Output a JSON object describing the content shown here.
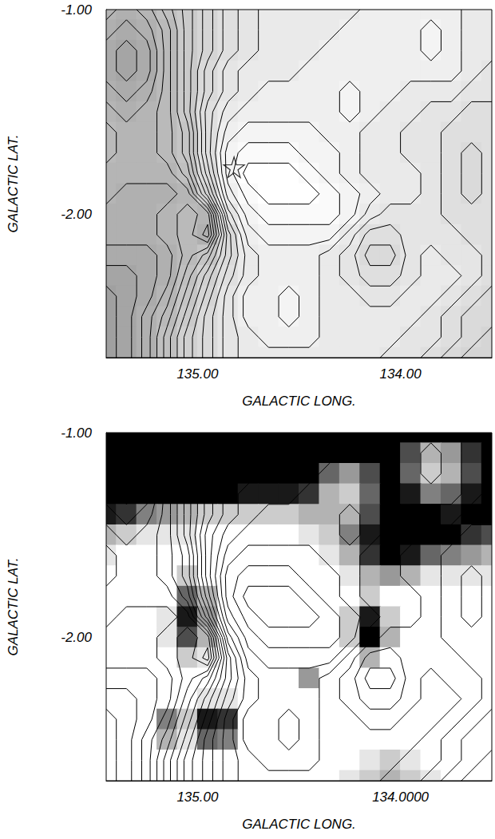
{
  "chart_data": [
    {
      "type": "contour",
      "xlabel": "GALACTIC LONG.",
      "ylabel": "GALACTIC LAT.",
      "xlim": [
        135.45,
        133.55
      ],
      "ylim": [
        -2.7,
        -1.0
      ],
      "xticks": [
        {
          "value": 135,
          "label": "135.00"
        },
        {
          "value": 134,
          "label": "134.00"
        }
      ],
      "yticks": [
        {
          "value": -1,
          "label": "-1.00"
        },
        {
          "value": -2,
          "label": "-2.00"
        }
      ],
      "x": [
        135.45,
        135.35,
        135.25,
        135.15,
        135.05,
        134.95,
        134.85,
        134.75,
        134.65,
        134.55,
        134.45,
        134.35,
        134.25,
        134.15,
        134.05,
        133.95,
        133.85,
        133.75,
        133.65,
        133.55
      ],
      "y": [
        -1.0,
        -1.1,
        -1.2,
        -1.3,
        -1.4,
        -1.5,
        -1.6,
        -1.7,
        -1.8,
        -1.9,
        -2.0,
        -2.1,
        -2.2,
        -2.3,
        -2.4,
        -2.5,
        -2.6,
        -2.7
      ],
      "field": [
        [
          15,
          16,
          15,
          13,
          11,
          9,
          7,
          6,
          5,
          5,
          5,
          5,
          5,
          4,
          4,
          4,
          4,
          4,
          5,
          5
        ],
        [
          16,
          17,
          16,
          14,
          11,
          9,
          7,
          6,
          5,
          5,
          5,
          5,
          4,
          4,
          4,
          4,
          3,
          4,
          5,
          5
        ],
        [
          17,
          18,
          17,
          14,
          11,
          9,
          7,
          6,
          5,
          5,
          5,
          4,
          4,
          4,
          4,
          4,
          3,
          4,
          5,
          5
        ],
        [
          17,
          18,
          17,
          14,
          11,
          8,
          6,
          5,
          5,
          5,
          4,
          4,
          4,
          4,
          4,
          4,
          4,
          4,
          5,
          6
        ],
        [
          16,
          17,
          16,
          14,
          11,
          8,
          6,
          5,
          4,
          4,
          4,
          4,
          3,
          4,
          4,
          5,
          5,
          5,
          6,
          6
        ],
        [
          15,
          16,
          15,
          14,
          11,
          7,
          5,
          4,
          4,
          4,
          4,
          4,
          3,
          4,
          5,
          5,
          6,
          6,
          7,
          7
        ],
        [
          14,
          15,
          15,
          14,
          12,
          7,
          4,
          3,
          3,
          3,
          3,
          4,
          4,
          5,
          5,
          6,
          6,
          7,
          7,
          7
        ],
        [
          14,
          15,
          15,
          14,
          12,
          7,
          3,
          2,
          2,
          2,
          3,
          3,
          4,
          5,
          5,
          6,
          6,
          7,
          8,
          7
        ],
        [
          15,
          15,
          15,
          15,
          13,
          8,
          3,
          1,
          1,
          1,
          2,
          3,
          4,
          5,
          5,
          5,
          6,
          7,
          8,
          7
        ],
        [
          15,
          16,
          16,
          16,
          15,
          10,
          4,
          2,
          1,
          1,
          1,
          2,
          3,
          4,
          5,
          5,
          6,
          7,
          8,
          7
        ],
        [
          16,
          16,
          16,
          15,
          14,
          15,
          6,
          3,
          2,
          2,
          2,
          2,
          3,
          5,
          6,
          6,
          6,
          7,
          7,
          7
        ],
        [
          16,
          16,
          16,
          15,
          14,
          16,
          8,
          4,
          3,
          3,
          3,
          3,
          5,
          7,
          7,
          6,
          6,
          6,
          7,
          7
        ],
        [
          17,
          17,
          17,
          16,
          14,
          12,
          8,
          5,
          4,
          4,
          4,
          5,
          6,
          8,
          8,
          6,
          5,
          6,
          6,
          7
        ],
        [
          18,
          18,
          17,
          16,
          13,
          10,
          7,
          5,
          4,
          4,
          4,
          5,
          6,
          7,
          7,
          6,
          5,
          5,
          6,
          7
        ],
        [
          19,
          18,
          17,
          15,
          12,
          9,
          6,
          4,
          4,
          3,
          4,
          5,
          5,
          6,
          6,
          5,
          5,
          6,
          7,
          8
        ],
        [
          19,
          18,
          16,
          14,
          11,
          8,
          6,
          4,
          4,
          3,
          4,
          5,
          5,
          5,
          5,
          5,
          6,
          7,
          8,
          8
        ],
        [
          19,
          18,
          16,
          13,
          10,
          8,
          6,
          5,
          4,
          4,
          4,
          5,
          5,
          5,
          5,
          6,
          6,
          7,
          8,
          9
        ],
        [
          19,
          18,
          16,
          13,
          10,
          8,
          6,
          5,
          5,
          5,
          5,
          5,
          5,
          5,
          6,
          6,
          7,
          8,
          9,
          9
        ]
      ],
      "levels": [
        1.5,
        2.5,
        3.5,
        4.5,
        5.5,
        6.5,
        7.5,
        8.5,
        9.5,
        10.5,
        11.5,
        12.5,
        13.5,
        14.5,
        15.5,
        16.5,
        17.5,
        18.5
      ],
      "points": [
        [
          134.82,
          -1.77
        ]
      ],
      "marker": "star"
    },
    {
      "type": "contour",
      "xlabel": "GALACTIC LONG.",
      "ylabel": "GALACTIC LAT.",
      "xlim": [
        135.45,
        133.55
      ],
      "ylim": [
        -2.7,
        -1.0
      ],
      "xticks": [
        {
          "value": 135,
          "label": "135.00"
        },
        {
          "value": 134,
          "label": "134.0000"
        }
      ],
      "yticks": [
        {
          "value": -1,
          "label": "-1.00"
        },
        {
          "value": -2,
          "label": "-2.00"
        }
      ],
      "x": [
        135.45,
        135.35,
        135.25,
        135.15,
        135.05,
        134.95,
        134.85,
        134.75,
        134.65,
        134.55,
        134.45,
        134.35,
        134.25,
        134.15,
        134.05,
        133.95,
        133.85,
        133.75,
        133.65,
        133.55
      ],
      "y": [
        -1.0,
        -1.1,
        -1.2,
        -1.3,
        -1.4,
        -1.5,
        -1.6,
        -1.7,
        -1.8,
        -1.9,
        -2.0,
        -2.1,
        -2.2,
        -2.3,
        -2.4,
        -2.5,
        -2.6,
        -2.7
      ],
      "field": [
        [
          15,
          16,
          15,
          13,
          11,
          9,
          7,
          6,
          5,
          5,
          5,
          5,
          5,
          4,
          4,
          4,
          4,
          4,
          5,
          5
        ],
        [
          16,
          17,
          16,
          14,
          11,
          9,
          7,
          6,
          5,
          5,
          5,
          5,
          4,
          4,
          4,
          4,
          3,
          4,
          5,
          5
        ],
        [
          17,
          18,
          17,
          14,
          11,
          9,
          7,
          6,
          5,
          5,
          5,
          4,
          4,
          4,
          4,
          4,
          3,
          4,
          5,
          5
        ],
        [
          17,
          18,
          17,
          14,
          11,
          8,
          6,
          5,
          5,
          5,
          4,
          4,
          4,
          4,
          4,
          4,
          4,
          4,
          5,
          6
        ],
        [
          16,
          17,
          16,
          14,
          11,
          8,
          6,
          5,
          4,
          4,
          4,
          4,
          3,
          4,
          4,
          5,
          5,
          5,
          6,
          6
        ],
        [
          15,
          16,
          15,
          14,
          11,
          7,
          5,
          4,
          4,
          4,
          4,
          4,
          3,
          4,
          5,
          5,
          6,
          6,
          7,
          7
        ],
        [
          14,
          15,
          15,
          14,
          12,
          7,
          4,
          3,
          3,
          3,
          3,
          4,
          4,
          5,
          5,
          6,
          6,
          7,
          7,
          7
        ],
        [
          14,
          15,
          15,
          14,
          12,
          7,
          3,
          2,
          2,
          2,
          3,
          3,
          4,
          5,
          5,
          6,
          6,
          7,
          8,
          7
        ],
        [
          15,
          15,
          15,
          15,
          13,
          8,
          3,
          1,
          1,
          1,
          2,
          3,
          4,
          5,
          5,
          5,
          6,
          7,
          8,
          7
        ],
        [
          15,
          16,
          16,
          16,
          15,
          10,
          4,
          2,
          1,
          1,
          1,
          2,
          3,
          4,
          5,
          5,
          6,
          7,
          8,
          7
        ],
        [
          16,
          16,
          16,
          15,
          14,
          15,
          6,
          3,
          2,
          2,
          2,
          2,
          3,
          5,
          6,
          6,
          6,
          7,
          7,
          7
        ],
        [
          16,
          16,
          16,
          15,
          14,
          16,
          8,
          4,
          3,
          3,
          3,
          3,
          5,
          7,
          7,
          6,
          6,
          6,
          7,
          7
        ],
        [
          17,
          17,
          17,
          16,
          14,
          12,
          8,
          5,
          4,
          4,
          4,
          5,
          6,
          8,
          8,
          6,
          5,
          6,
          6,
          7
        ],
        [
          18,
          18,
          17,
          16,
          13,
          10,
          7,
          5,
          4,
          4,
          4,
          5,
          6,
          7,
          7,
          6,
          5,
          5,
          6,
          7
        ],
        [
          19,
          18,
          17,
          15,
          12,
          9,
          6,
          4,
          4,
          3,
          4,
          5,
          5,
          6,
          6,
          5,
          5,
          6,
          7,
          8
        ],
        [
          19,
          18,
          16,
          14,
          11,
          8,
          6,
          4,
          4,
          3,
          4,
          5,
          5,
          5,
          5,
          5,
          6,
          7,
          8,
          8
        ],
        [
          19,
          18,
          16,
          13,
          10,
          8,
          6,
          5,
          4,
          4,
          4,
          5,
          5,
          5,
          5,
          6,
          6,
          7,
          8,
          9
        ],
        [
          19,
          18,
          16,
          13,
          10,
          8,
          6,
          5,
          5,
          5,
          5,
          5,
          5,
          5,
          6,
          6,
          7,
          8,
          9,
          9
        ]
      ],
      "levels": [
        1.5,
        2.5,
        3.5,
        4.5,
        5.5,
        6.5,
        7.5,
        8.5,
        9.5,
        10.5,
        11.5,
        12.5,
        13.5,
        14.5,
        15.5,
        16.5,
        17.5,
        18.5
      ],
      "image": [
        [
          1,
          1,
          1,
          1,
          1,
          1,
          1,
          1,
          1,
          1,
          1,
          1,
          1,
          1,
          1,
          1,
          1,
          1,
          1,
          1
        ],
        [
          1,
          1,
          1,
          1,
          1,
          1,
          1,
          1,
          1,
          1,
          1,
          1,
          1,
          1,
          1,
          0.7,
          0.3,
          0.4,
          0.8,
          1
        ],
        [
          1,
          1,
          1,
          1,
          1,
          1,
          1,
          1,
          1,
          1,
          1,
          0.6,
          0.4,
          0.7,
          1,
          0.6,
          0.2,
          0.3,
          0.7,
          1
        ],
        [
          1,
          1,
          1,
          1,
          1,
          1,
          1,
          0.9,
          0.9,
          0.9,
          0.8,
          0.3,
          0.2,
          0.6,
          1,
          0.9,
          0.5,
          0.6,
          0.9,
          1
        ],
        [
          0.9,
          0.8,
          0.5,
          0.4,
          0.3,
          0.2,
          0.2,
          0.2,
          0.2,
          0.2,
          0.3,
          0.3,
          0.3,
          0.7,
          1,
          1,
          1,
          0.9,
          1,
          1
        ],
        [
          0.3,
          0.2,
          0.1,
          0.1,
          0.1,
          0,
          0,
          0,
          0,
          0,
          0.1,
          0.2,
          0.5,
          0.9,
          1,
          1,
          1,
          1,
          0.8,
          0.7
        ],
        [
          0.1,
          0,
          0,
          0,
          0,
          0,
          0,
          0,
          0,
          0,
          0,
          0.1,
          0.3,
          0.8,
          1,
          0.9,
          0.6,
          0.5,
          0.4,
          0.3
        ],
        [
          0,
          0,
          0,
          0,
          0.2,
          0,
          0,
          0,
          0,
          0,
          0,
          0,
          0.1,
          0.3,
          0.4,
          0.3,
          0.1,
          0.1,
          0.1,
          0.1
        ],
        [
          0,
          0,
          0,
          0,
          0.6,
          0.3,
          0,
          0,
          0,
          0,
          0,
          0,
          0,
          0.2,
          0,
          0,
          0,
          0,
          0,
          0
        ],
        [
          0,
          0,
          0,
          0.1,
          0.9,
          0.4,
          0,
          0,
          0,
          0,
          0,
          0,
          0.2,
          0.9,
          0.2,
          0,
          0,
          0,
          0,
          0
        ],
        [
          0,
          0,
          0,
          0.1,
          0.7,
          0.3,
          0,
          0,
          0,
          0,
          0,
          0,
          0.2,
          1,
          0.3,
          0,
          0,
          0,
          0,
          0
        ],
        [
          0,
          0,
          0,
          0,
          0.2,
          0.1,
          0,
          0,
          0,
          0,
          0,
          0,
          0,
          0.3,
          0,
          0,
          0,
          0,
          0,
          0
        ],
        [
          0,
          0,
          0,
          0,
          0,
          0,
          0,
          0,
          0,
          0,
          0.4,
          0,
          0,
          0,
          0,
          0,
          0,
          0,
          0,
          0
        ],
        [
          0,
          0,
          0,
          0,
          0,
          0.1,
          0.1,
          0,
          0,
          0,
          0,
          0,
          0,
          0,
          0,
          0,
          0,
          0,
          0,
          0
        ],
        [
          0,
          0,
          0,
          0.5,
          0.2,
          0.9,
          0.8,
          0,
          0,
          0,
          0,
          0,
          0,
          0,
          0,
          0,
          0,
          0,
          0,
          0
        ],
        [
          0,
          0,
          0,
          0.3,
          0.1,
          0.6,
          0.5,
          0,
          0,
          0,
          0,
          0,
          0,
          0,
          0,
          0,
          0,
          0,
          0,
          0
        ],
        [
          0,
          0,
          0,
          0,
          0,
          0,
          0,
          0,
          0,
          0,
          0,
          0,
          0,
          0.1,
          0.2,
          0.1,
          0,
          0,
          0,
          0
        ],
        [
          0,
          0,
          0,
          0,
          0,
          0,
          0,
          0,
          0,
          0,
          0,
          0,
          0.1,
          0.2,
          0.3,
          0.2,
          0.1,
          0,
          0,
          0
        ]
      ]
    }
  ]
}
